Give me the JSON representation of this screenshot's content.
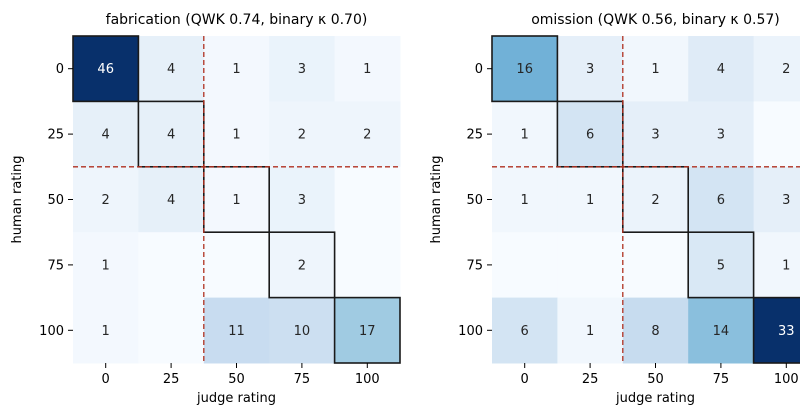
{
  "chart_data": [
    {
      "type": "heatmap",
      "title": "fabrication  (QWK 0.74, binary κ 0.70)",
      "xlabel": "judge rating",
      "ylabel": "human rating",
      "x_categories": [
        "0",
        "25",
        "50",
        "75",
        "100"
      ],
      "y_categories": [
        "0",
        "25",
        "50",
        "75",
        "100"
      ],
      "values": [
        [
          46,
          4,
          1,
          3,
          1
        ],
        [
          4,
          4,
          1,
          2,
          2
        ],
        [
          2,
          4,
          1,
          3,
          null
        ],
        [
          1,
          null,
          null,
          2,
          null
        ],
        [
          1,
          null,
          11,
          10,
          17
        ]
      ],
      "threshold_after_index": 1,
      "diagonal_outlined": true,
      "colormap": "Blues",
      "threshold_color": "#b03020"
    },
    {
      "type": "heatmap",
      "title": "omission  (QWK 0.56, binary κ 0.57)",
      "xlabel": "judge rating",
      "ylabel": "human rating",
      "x_categories": [
        "0",
        "25",
        "50",
        "75",
        "100"
      ],
      "y_categories": [
        "0",
        "25",
        "50",
        "75",
        "100"
      ],
      "values": [
        [
          16,
          3,
          1,
          4,
          2
        ],
        [
          1,
          6,
          3,
          3,
          null
        ],
        [
          1,
          1,
          2,
          6,
          3
        ],
        [
          null,
          null,
          null,
          5,
          1
        ],
        [
          6,
          1,
          8,
          14,
          33
        ]
      ],
      "threshold_after_index": 1,
      "diagonal_outlined": true,
      "colormap": "Blues",
      "threshold_color": "#b03020"
    }
  ]
}
